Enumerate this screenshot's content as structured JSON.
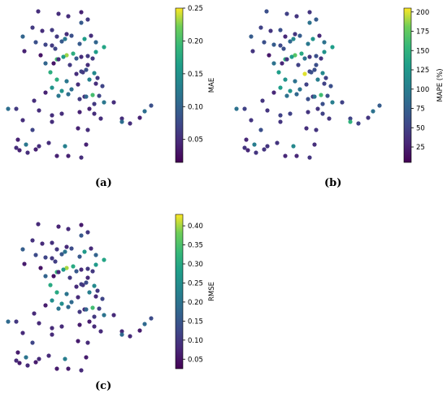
{
  "panels": [
    {
      "caption": "(a)",
      "colorbar_label": "MAE",
      "colorbar_ticks": [
        "0.05",
        "0.10",
        "0.15",
        "0.20",
        "0.25"
      ],
      "colorbar_tick_values": [
        0.05,
        0.1,
        0.15,
        0.2,
        0.25
      ],
      "colorbar_range": [
        0.015,
        0.25
      ]
    },
    {
      "caption": "(b)",
      "colorbar_label": "MAPE (%)",
      "colorbar_ticks": [
        "25",
        "50",
        "75",
        "100",
        "125",
        "150",
        "175",
        "200"
      ],
      "colorbar_tick_values": [
        25,
        50,
        75,
        100,
        125,
        150,
        175,
        200
      ],
      "colorbar_range": [
        5,
        205
      ]
    },
    {
      "caption": "(c)",
      "colorbar_label": "RMSE",
      "colorbar_ticks": [
        "0.05",
        "0.10",
        "0.15",
        "0.20",
        "0.25",
        "0.30",
        "0.35",
        "0.40"
      ],
      "colorbar_tick_values": [
        0.05,
        0.1,
        0.15,
        0.2,
        0.25,
        0.3,
        0.35,
        0.4
      ],
      "colorbar_range": [
        0.025,
        0.43
      ]
    }
  ],
  "chart_data": [
    {
      "type": "scatter",
      "metric": "MAE",
      "colormap": "viridis",
      "x": [
        47,
        72,
        100,
        84,
        108,
        100,
        40,
        28,
        52,
        64,
        70,
        82,
        44,
        56,
        64,
        76,
        80,
        88,
        98,
        104,
        112,
        118,
        128,
        30,
        50,
        68,
        70,
        82,
        90,
        94,
        100,
        108,
        118,
        114,
        108,
        56,
        66,
        72,
        78,
        86,
        100,
        106,
        116,
        120,
        62,
        70,
        82,
        94,
        102,
        110,
        118,
        126,
        64,
        76,
        88,
        96,
        104,
        114,
        122,
        140,
        20,
        42,
        56,
        72,
        84,
        98,
        106,
        116,
        128,
        150,
        160,
        172,
        178,
        186,
        48,
        64,
        76,
        98,
        110,
        116,
        124,
        150,
        10,
        28,
        40,
        64,
        96,
        108,
        22,
        32,
        44,
        60,
        80,
        106,
        20,
        24,
        34,
        48,
        70,
        84,
        100
      ],
      "y": [
        14,
        17,
        15,
        20,
        24,
        28,
        34,
        45,
        38,
        37,
        45,
        42,
        52,
        55,
        56,
        51,
        48,
        44,
        54,
        48,
        44,
        52,
        58,
        63,
        68,
        60,
        73,
        68,
        66,
        72,
        70,
        69,
        64,
        72,
        80,
        78,
        78,
        73,
        70,
        80,
        88,
        86,
        90,
        96,
        89,
        98,
        100,
        91,
        89,
        98,
        103,
        106,
        108,
        112,
        110,
        104,
        119,
        117,
        118,
        126,
        134,
        124,
        114,
        118,
        116,
        122,
        119,
        128,
        126,
        146,
        152,
        145,
        137,
        130,
        136,
        142,
        140,
        138,
        134,
        140,
        146,
        150,
        134,
        148,
        160,
        150,
        158,
        160,
        172,
        178,
        184,
        176,
        180,
        178,
        182,
        185,
        188,
        180,
        192,
        192,
        194
      ],
      "values": [
        0.05,
        0.05,
        0.04,
        0.05,
        0.06,
        0.09,
        0.06,
        0.1,
        0.05,
        0.06,
        0.06,
        0.05,
        0.08,
        0.07,
        0.06,
        0.09,
        0.12,
        0.08,
        0.09,
        0.16,
        0.05,
        0.1,
        0.17,
        0.04,
        0.03,
        0.07,
        0.2,
        0.23,
        0.18,
        0.09,
        0.05,
        0.06,
        0.16,
        0.06,
        0.05,
        0.1,
        0.03,
        0.05,
        0.16,
        0.06,
        0.07,
        0.08,
        0.14,
        0.06,
        0.18,
        0.18,
        0.12,
        0.05,
        0.06,
        0.13,
        0.05,
        0.07,
        0.15,
        0.15,
        0.11,
        0.05,
        0.05,
        0.2,
        0.07,
        0.05,
        0.06,
        0.05,
        0.04,
        0.12,
        0.11,
        0.06,
        0.1,
        0.06,
        0.12,
        0.05,
        0.05,
        0.04,
        0.11,
        0.08,
        0.05,
        0.05,
        0.05,
        0.04,
        0.04,
        0.05,
        0.05,
        0.11,
        0.11,
        0.05,
        0.07,
        0.05,
        0.04,
        0.05,
        0.04,
        0.12,
        0.04,
        0.05,
        0.13,
        0.04,
        0.05,
        0.04,
        0.05,
        0.05,
        0.04,
        0.04,
        0.05
      ],
      "colorbar_label": "MAE"
    },
    {
      "type": "scatter",
      "metric": "MAPE (%)",
      "colormap": "viridis",
      "x": [
        47,
        72,
        100,
        84,
        108,
        100,
        40,
        28,
        52,
        64,
        70,
        82,
        44,
        56,
        64,
        76,
        80,
        88,
        98,
        104,
        112,
        118,
        128,
        30,
        50,
        68,
        70,
        82,
        90,
        94,
        100,
        108,
        118,
        114,
        108,
        56,
        66,
        72,
        78,
        86,
        100,
        106,
        116,
        120,
        62,
        70,
        82,
        94,
        102,
        110,
        118,
        126,
        64,
        76,
        88,
        96,
        104,
        114,
        122,
        140,
        20,
        42,
        56,
        72,
        84,
        98,
        106,
        116,
        128,
        150,
        160,
        172,
        178,
        186,
        48,
        64,
        76,
        98,
        110,
        116,
        124,
        150,
        10,
        28,
        40,
        64,
        96,
        108,
        22,
        32,
        44,
        60,
        80,
        106,
        20,
        24,
        34,
        48,
        70,
        84,
        100
      ],
      "y": [
        14,
        17,
        15,
        20,
        24,
        28,
        34,
        45,
        38,
        37,
        45,
        42,
        52,
        55,
        56,
        51,
        48,
        44,
        54,
        48,
        44,
        52,
        58,
        63,
        68,
        60,
        73,
        68,
        66,
        72,
        70,
        69,
        64,
        72,
        80,
        78,
        78,
        73,
        70,
        80,
        88,
        86,
        90,
        96,
        89,
        98,
        100,
        91,
        89,
        98,
        103,
        106,
        108,
        112,
        110,
        104,
        119,
        117,
        118,
        126,
        134,
        124,
        114,
        118,
        116,
        122,
        119,
        128,
        126,
        146,
        152,
        145,
        137,
        130,
        136,
        142,
        140,
        138,
        134,
        140,
        146,
        150,
        134,
        148,
        160,
        150,
        158,
        160,
        172,
        178,
        184,
        176,
        180,
        178,
        182,
        185,
        188,
        180,
        192,
        192,
        194
      ],
      "values": [
        60,
        50,
        40,
        40,
        70,
        90,
        50,
        70,
        40,
        60,
        30,
        40,
        60,
        70,
        55,
        80,
        110,
        70,
        95,
        120,
        30,
        90,
        130,
        40,
        20,
        60,
        150,
        170,
        140,
        90,
        40,
        60,
        120,
        40,
        60,
        90,
        30,
        40,
        130,
        50,
        50,
        60,
        110,
        50,
        130,
        120,
        90,
        200,
        60,
        100,
        50,
        60,
        130,
        120,
        90,
        50,
        40,
        160,
        60,
        50,
        50,
        40,
        30,
        90,
        80,
        60,
        90,
        60,
        100,
        50,
        50,
        40,
        90,
        70,
        40,
        50,
        50,
        40,
        40,
        50,
        40,
        150,
        90,
        40,
        60,
        40,
        35,
        40,
        30,
        100,
        40,
        40,
        110,
        35,
        40,
        30,
        40,
        40,
        30,
        30,
        40
      ],
      "colorbar_label": "MAPE (%)"
    },
    {
      "type": "scatter",
      "metric": "RMSE",
      "colormap": "viridis",
      "x": [
        47,
        72,
        100,
        84,
        108,
        100,
        40,
        28,
        52,
        64,
        70,
        82,
        44,
        56,
        64,
        76,
        80,
        88,
        98,
        104,
        112,
        118,
        128,
        30,
        50,
        68,
        70,
        82,
        90,
        94,
        100,
        108,
        118,
        114,
        108,
        56,
        66,
        72,
        78,
        86,
        100,
        106,
        116,
        120,
        62,
        70,
        82,
        94,
        102,
        110,
        118,
        126,
        64,
        76,
        88,
        96,
        104,
        114,
        122,
        140,
        20,
        42,
        56,
        72,
        84,
        98,
        106,
        116,
        128,
        150,
        160,
        172,
        178,
        186,
        48,
        64,
        76,
        98,
        110,
        116,
        124,
        150,
        10,
        28,
        40,
        64,
        96,
        108,
        22,
        32,
        44,
        60,
        80,
        106,
        20,
        24,
        34,
        48,
        70,
        84,
        100
      ],
      "y": [
        14,
        17,
        15,
        20,
        24,
        28,
        34,
        45,
        38,
        37,
        45,
        42,
        52,
        55,
        56,
        51,
        48,
        44,
        54,
        48,
        44,
        52,
        58,
        63,
        68,
        60,
        73,
        68,
        66,
        72,
        70,
        69,
        64,
        72,
        80,
        78,
        78,
        73,
        70,
        80,
        88,
        86,
        90,
        96,
        89,
        98,
        100,
        91,
        89,
        98,
        103,
        106,
        108,
        112,
        110,
        104,
        119,
        117,
        118,
        126,
        134,
        124,
        114,
        118,
        116,
        122,
        119,
        128,
        126,
        146,
        152,
        145,
        137,
        130,
        136,
        142,
        140,
        138,
        134,
        140,
        146,
        150,
        134,
        148,
        160,
        150,
        158,
        160,
        172,
        178,
        184,
        176,
        180,
        178,
        182,
        185,
        188,
        180,
        192,
        192,
        194
      ],
      "values": [
        0.08,
        0.07,
        0.06,
        0.08,
        0.1,
        0.15,
        0.09,
        0.16,
        0.08,
        0.09,
        0.1,
        0.08,
        0.13,
        0.12,
        0.1,
        0.15,
        0.2,
        0.13,
        0.15,
        0.27,
        0.08,
        0.17,
        0.29,
        0.06,
        0.05,
        0.11,
        0.33,
        0.4,
        0.3,
        0.15,
        0.08,
        0.1,
        0.27,
        0.1,
        0.08,
        0.17,
        0.05,
        0.08,
        0.27,
        0.1,
        0.11,
        0.13,
        0.24,
        0.1,
        0.3,
        0.3,
        0.2,
        0.08,
        0.1,
        0.22,
        0.08,
        0.12,
        0.25,
        0.25,
        0.18,
        0.08,
        0.08,
        0.34,
        0.11,
        0.08,
        0.1,
        0.08,
        0.06,
        0.2,
        0.18,
        0.1,
        0.17,
        0.1,
        0.2,
        0.08,
        0.08,
        0.06,
        0.18,
        0.13,
        0.08,
        0.08,
        0.08,
        0.06,
        0.06,
        0.08,
        0.08,
        0.18,
        0.18,
        0.08,
        0.12,
        0.08,
        0.06,
        0.08,
        0.06,
        0.2,
        0.06,
        0.08,
        0.22,
        0.06,
        0.08,
        0.06,
        0.08,
        0.08,
        0.06,
        0.06,
        0.08
      ],
      "colorbar_label": "RMSE"
    }
  ]
}
